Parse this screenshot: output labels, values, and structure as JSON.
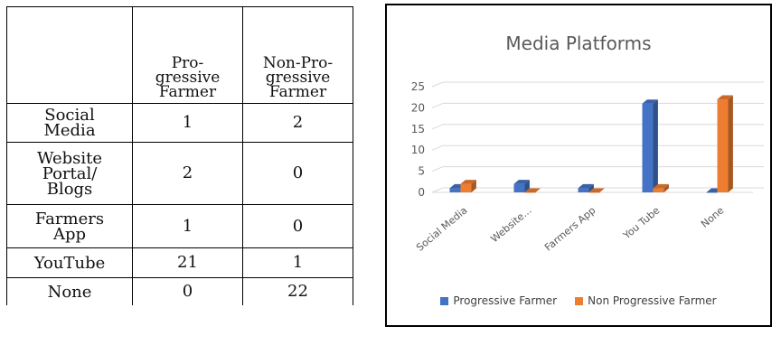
{
  "table": {
    "headers": [
      "",
      "Pro-\ngressive\nFarmer",
      "Non-Pro-\ngressive\nFarmer"
    ],
    "rows": [
      {
        "label": "Social\nMedia",
        "progressive": "1",
        "non_progressive": "2"
      },
      {
        "label": "Website\nPortal/\nBlogs",
        "progressive": "2",
        "non_progressive": "0"
      },
      {
        "label": "Farmers\nApp",
        "progressive": "1",
        "non_progressive": "0"
      },
      {
        "label": "YouTube",
        "progressive": "21",
        "non_progressive": "1"
      },
      {
        "label": "None",
        "progressive": "0",
        "non_progressive": "22"
      }
    ]
  },
  "chart_data": {
    "type": "bar",
    "title": "Media Platforms",
    "categories": [
      "Social Media",
      "Website...",
      "Farmers App",
      "You Tube",
      "None"
    ],
    "series": [
      {
        "name": "Progressive Farmer",
        "values": [
          1,
          2,
          1,
          21,
          0
        ],
        "color": "#4472C4"
      },
      {
        "name": "Non Progressive Farmer",
        "values": [
          2,
          0,
          0,
          1,
          22
        ],
        "color": "#ED7D31"
      }
    ],
    "yticks": [
      "0",
      "5",
      "10",
      "15",
      "20",
      "25"
    ],
    "ylim": [
      0,
      25
    ],
    "grid": true,
    "legend": "bottom",
    "style": "3d-clustered-column"
  }
}
